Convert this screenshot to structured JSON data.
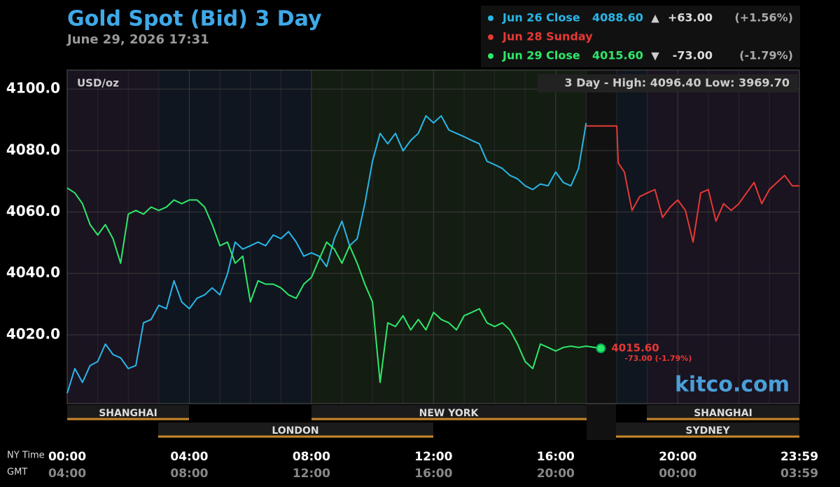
{
  "chart_data": {
    "type": "line",
    "title": "Gold Spot (Bid) 3 Day",
    "subtitle": "June 29, 2026 17:31",
    "ylabel": "USD/oz",
    "range_note": "3 Day - High: 4096.40  Low: 3969.70",
    "watermark": "kitco.com",
    "x_axis_names": [
      "NY Time",
      "GMT"
    ],
    "xlim": [
      0,
      23.983
    ],
    "xticks": [
      {
        "value": 0,
        "label": "00:00"
      },
      {
        "value": 4,
        "label": "04:00"
      },
      {
        "value": 8,
        "label": "08:00"
      },
      {
        "value": 12,
        "label": "12:00"
      },
      {
        "value": 16,
        "label": "16:00"
      },
      {
        "value": 20,
        "label": "20:00"
      },
      {
        "value": 23.983,
        "label": "23:59"
      }
    ],
    "gmt_labels": [
      "04:00",
      "08:00",
      "12:00",
      "16:00",
      "20:00",
      "00:00",
      "03:59"
    ],
    "ylim": [
      3997.6,
      4106.2
    ],
    "yticks": [
      {
        "value": 4020,
        "label": "4020.0"
      },
      {
        "value": 4040,
        "label": "4040.0"
      },
      {
        "value": 4060,
        "label": "4060.0"
      },
      {
        "value": 4080,
        "label": "4080.0"
      },
      {
        "value": 4100,
        "label": "4100.0"
      }
    ],
    "grid": true,
    "sessions": [
      "SHANGHAI",
      "NEW YORK",
      "SHANGHAI",
      "LONDON",
      "SYDNEY"
    ],
    "series": [
      {
        "name": "Jun 26 Close",
        "color": "#29b6e8",
        "summary": {
          "close": "4088.60",
          "arrow": "▲",
          "change": "+63.00",
          "percent": "(+1.56%)"
        },
        "x": [
          0,
          0.25,
          0.5,
          0.75,
          1,
          1.25,
          1.5,
          1.75,
          2,
          2.25,
          2.5,
          2.75,
          3,
          3.25,
          3.5,
          3.75,
          4,
          4.25,
          4.5,
          4.75,
          5,
          5.25,
          5.5,
          5.75,
          6,
          6.25,
          6.5,
          6.75,
          7,
          7.25,
          7.5,
          7.75,
          8,
          8.25,
          8.5,
          8.75,
          9,
          9.25,
          9.5,
          9.75,
          10,
          10.25,
          10.5,
          10.75,
          11,
          11.25,
          11.5,
          11.75,
          12,
          12.25,
          12.5,
          12.75,
          13,
          13.25,
          13.5,
          13.75,
          14,
          14.25,
          14.5,
          14.75,
          15,
          15.25,
          15.5,
          15.75,
          16,
          16.25,
          16.5,
          16.75,
          17
        ],
        "values": [
          4001.0,
          4009.0,
          4004.5,
          4010.0,
          4011.3,
          4017.0,
          4013.6,
          4012.5,
          4009.0,
          4010.0,
          4023.9,
          4025.0,
          4029.6,
          4028.5,
          4037.6,
          4030.7,
          4028.5,
          4031.9,
          4033.0,
          4035.3,
          4033.0,
          4039.9,
          4050.2,
          4047.9,
          4049.0,
          4050.2,
          4049.0,
          4052.5,
          4051.3,
          4053.6,
          4050.2,
          4045.6,
          4046.7,
          4045.6,
          4042.2,
          4051.3,
          4057.0,
          4049.0,
          4051.3,
          4062.7,
          4076.5,
          4085.6,
          4082.2,
          4085.6,
          4079.9,
          4083.3,
          4085.6,
          4091.3,
          4089.0,
          4091.3,
          4086.7,
          4085.6,
          4084.5,
          4083.3,
          4082.2,
          4076.5,
          4075.4,
          4074.2,
          4071.9,
          4070.8,
          4068.5,
          4067.3,
          4069.1,
          4068.5,
          4073.0,
          4069.6,
          4068.5,
          4074.2,
          4089.0
        ]
      },
      {
        "name": "Jun 28 Sunday",
        "color": "#e53935",
        "x": [
          17,
          18,
          18.05,
          18.25,
          18.5,
          18.75,
          19,
          19.25,
          19.5,
          19.75,
          20,
          20.25,
          20.5,
          20.75,
          21,
          21.25,
          21.5,
          21.75,
          22,
          22.25,
          22.5,
          22.75,
          23,
          23.25,
          23.5,
          23.75,
          23.983
        ],
        "values": [
          4088.0,
          4088.0,
          4076.0,
          4073.0,
          4060.5,
          4065.0,
          4066.2,
          4067.3,
          4058.2,
          4061.6,
          4063.9,
          4060.5,
          4050.2,
          4066.2,
          4067.3,
          4057.0,
          4062.7,
          4060.5,
          4062.7,
          4066.2,
          4069.6,
          4062.7,
          4067.3,
          4069.6,
          4071.9,
          4068.5,
          4068.5
        ]
      },
      {
        "name": "Jun 29 Close",
        "color": "#2ee86a",
        "summary": {
          "close": "4015.60",
          "arrow": "▼",
          "change": "-73.00",
          "percent": "(-1.79%)"
        },
        "x": [
          0,
          0.25,
          0.5,
          0.75,
          1,
          1.25,
          1.5,
          1.75,
          2,
          2.25,
          2.5,
          2.75,
          3,
          3.25,
          3.5,
          3.75,
          4,
          4.25,
          4.5,
          4.75,
          5,
          5.25,
          5.5,
          5.75,
          6,
          6.25,
          6.5,
          6.75,
          7,
          7.25,
          7.5,
          7.75,
          8,
          8.25,
          8.5,
          8.75,
          9,
          9.25,
          9.5,
          9.75,
          10,
          10.25,
          10.5,
          10.75,
          11,
          11.25,
          11.5,
          11.75,
          12,
          12.25,
          12.5,
          12.75,
          13,
          13.25,
          13.5,
          13.75,
          14,
          14.25,
          14.5,
          14.75,
          15,
          15.25,
          15.5,
          15.75,
          16,
          16.25,
          16.5,
          16.75,
          17,
          17.48
        ],
        "values": [
          4067.8,
          4066.2,
          4062.7,
          4055.9,
          4052.5,
          4055.9,
          4051.3,
          4043.3,
          4059.3,
          4060.5,
          4059.3,
          4061.6,
          4060.5,
          4061.6,
          4063.9,
          4062.7,
          4063.9,
          4063.9,
          4061.6,
          4055.9,
          4049.0,
          4050.2,
          4043.3,
          4045.6,
          4030.7,
          4037.6,
          4036.5,
          4036.5,
          4035.3,
          4033.0,
          4031.9,
          4036.5,
          4038.7,
          4044.5,
          4050.2,
          4047.9,
          4043.3,
          4049.0,
          4043.3,
          4036.5,
          4030.7,
          4004.5,
          4023.9,
          4022.7,
          4026.2,
          4021.6,
          4025.0,
          4021.6,
          4027.3,
          4025.0,
          4023.9,
          4021.6,
          4026.2,
          4027.3,
          4028.5,
          4023.9,
          4022.7,
          4023.9,
          4021.6,
          4017.0,
          4011.3,
          4009.0,
          4017.0,
          4015.9,
          4014.7,
          4015.9,
          4016.3,
          4015.9,
          4016.3,
          4015.6
        ]
      }
    ],
    "end_annotation": {
      "price": "4015.60",
      "change": "-73.00 (-1.79%)"
    }
  }
}
